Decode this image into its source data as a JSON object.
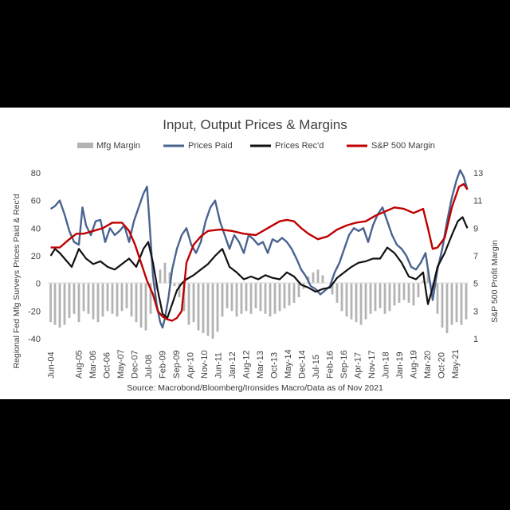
{
  "chart_data": {
    "type": "line",
    "title": "Input, Output Prices & Margins",
    "ylabel": "Regional Fed Mfg Surveys Prices Paid & Rec'd",
    "y2label": "S&P 500 Profit Margin",
    "source": "Source: Macrobond/Bloomberg/Ironsides Macro/Data as of Nov 2021",
    "ylim": [
      -40,
      80
    ],
    "y2lim": [
      1,
      13
    ],
    "yticks": [
      "80",
      "60",
      "40",
      "20",
      "0",
      "-20",
      "-40"
    ],
    "y2ticks": [
      "13",
      "11",
      "9",
      "7",
      "5",
      "3",
      "1"
    ],
    "xticks": [
      "Jun-04",
      "Aug-05",
      "Oct-06",
      "Dec-07",
      "Feb-09",
      "Apr-10",
      "Jun-11",
      "Aug-12",
      "Oct-13",
      "Dec-14",
      "Feb-16",
      "Apr-17",
      "Jun-18",
      "Aug-19",
      "Oct-20",
      "Mar-06",
      "May-07",
      "Jul-08",
      "Sep-09",
      "Nov-10",
      "Jan-12",
      "Mar-13",
      "May-14",
      "Jul-15",
      "Sep-16",
      "Nov-17",
      "Jan-19",
      "Mar-20",
      "May-21"
    ],
    "xtick_positions": [
      2004.42,
      2005.58,
      2006.75,
      2007.92,
      2009.08,
      2010.25,
      2011.42,
      2012.58,
      2013.75,
      2014.92,
      2016.08,
      2017.25,
      2018.42,
      2019.58,
      2020.75,
      2006.17,
      2007.33,
      2008.5,
      2009.67,
      2010.83,
      2012.0,
      2013.17,
      2014.33,
      2015.5,
      2016.67,
      2017.83,
      2019.0,
      2020.17,
      2021.33
    ],
    "xlim": [
      2004.3,
      2021.9
    ],
    "legend": {
      "position": "top",
      "items": [
        "Mfg Margin",
        "Prices Paid",
        "Prices Rec'd",
        "S&P 500 Margin"
      ]
    },
    "colors": {
      "mfg_margin": "#b3b3b3",
      "prices_paid": "#4a6390",
      "prices_recd": "#111111",
      "sp_margin": "#c00000"
    },
    "series": [
      {
        "name": "Prices Paid",
        "axis": "left",
        "x": [
          2004.42,
          2004.6,
          2004.8,
          2005.0,
          2005.2,
          2005.4,
          2005.6,
          2005.75,
          2005.9,
          2006.1,
          2006.3,
          2006.5,
          2006.7,
          2006.9,
          2007.1,
          2007.3,
          2007.5,
          2007.7,
          2007.9,
          2008.1,
          2008.3,
          2008.45,
          2008.55,
          2008.7,
          2008.85,
          2009.0,
          2009.1,
          2009.2,
          2009.35,
          2009.5,
          2009.7,
          2009.9,
          2010.1,
          2010.3,
          2010.5,
          2010.7,
          2010.9,
          2011.1,
          2011.3,
          2011.5,
          2011.7,
          2011.9,
          2012.1,
          2012.3,
          2012.5,
          2012.7,
          2012.9,
          2013.1,
          2013.3,
          2013.5,
          2013.7,
          2013.9,
          2014.1,
          2014.3,
          2014.5,
          2014.7,
          2014.9,
          2015.1,
          2015.3,
          2015.5,
          2015.7,
          2015.9,
          2016.1,
          2016.3,
          2016.5,
          2016.7,
          2016.9,
          2017.1,
          2017.3,
          2017.5,
          2017.7,
          2017.9,
          2018.1,
          2018.3,
          2018.5,
          2018.7,
          2018.9,
          2019.1,
          2019.3,
          2019.5,
          2019.7,
          2019.9,
          2020.1,
          2020.25,
          2020.4,
          2020.6,
          2020.8,
          2021.0,
          2021.2,
          2021.4,
          2021.55,
          2021.7,
          2021.85
        ],
        "values": [
          54,
          56,
          60,
          50,
          38,
          30,
          28,
          55,
          42,
          35,
          45,
          46,
          30,
          40,
          35,
          38,
          42,
          30,
          45,
          55,
          65,
          70,
          45,
          5,
          -15,
          -28,
          -32,
          -25,
          -10,
          10,
          25,
          35,
          40,
          28,
          22,
          30,
          45,
          55,
          60,
          45,
          35,
          25,
          35,
          30,
          22,
          35,
          32,
          28,
          30,
          22,
          32,
          30,
          33,
          30,
          25,
          18,
          10,
          5,
          -2,
          -4,
          -8,
          -5,
          -2,
          8,
          15,
          25,
          35,
          40,
          38,
          40,
          30,
          42,
          50,
          55,
          45,
          35,
          28,
          25,
          20,
          12,
          10,
          15,
          22,
          5,
          -12,
          10,
          25,
          45,
          62,
          75,
          82,
          77,
          68
        ]
      },
      {
        "name": "Prices Rec'd",
        "axis": "left",
        "x": [
          2004.42,
          2004.6,
          2004.8,
          2005.0,
          2005.3,
          2005.6,
          2005.9,
          2006.2,
          2006.5,
          2006.8,
          2007.1,
          2007.4,
          2007.7,
          2008.0,
          2008.3,
          2008.5,
          2008.7,
          2008.9,
          2009.1,
          2009.3,
          2009.5,
          2009.7,
          2009.9,
          2010.1,
          2010.4,
          2010.7,
          2011.0,
          2011.3,
          2011.6,
          2011.9,
          2012.2,
          2012.5,
          2012.8,
          2013.1,
          2013.4,
          2013.7,
          2014.0,
          2014.3,
          2014.6,
          2014.9,
          2015.2,
          2015.5,
          2015.8,
          2016.1,
          2016.4,
          2016.7,
          2017.0,
          2017.3,
          2017.6,
          2017.9,
          2018.2,
          2018.5,
          2018.8,
          2019.1,
          2019.4,
          2019.7,
          2020.0,
          2020.2,
          2020.4,
          2020.6,
          2020.9,
          2021.2,
          2021.45,
          2021.65,
          2021.85
        ],
        "values": [
          20,
          25,
          22,
          18,
          12,
          25,
          18,
          14,
          16,
          12,
          10,
          14,
          18,
          12,
          25,
          30,
          15,
          -5,
          -22,
          -25,
          -15,
          -5,
          0,
          3,
          6,
          10,
          14,
          20,
          25,
          12,
          8,
          3,
          5,
          3,
          6,
          4,
          3,
          8,
          5,
          -1,
          -3,
          -6,
          -4,
          -3,
          4,
          8,
          12,
          15,
          16,
          18,
          18,
          26,
          22,
          15,
          5,
          3,
          8,
          -15,
          -3,
          12,
          22,
          35,
          45,
          48,
          40
        ]
      },
      {
        "name": "S&P 500 Margin",
        "axis": "right",
        "x": [
          2004.42,
          2004.8,
          2005.2,
          2005.5,
          2005.8,
          2006.2,
          2006.6,
          2007.0,
          2007.4,
          2007.7,
          2007.95,
          2008.2,
          2008.45,
          2008.7,
          2008.9,
          2009.1,
          2009.3,
          2009.5,
          2009.7,
          2009.9,
          2010.1,
          2010.4,
          2010.7,
          2011.0,
          2011.5,
          2012.0,
          2012.5,
          2013.0,
          2013.5,
          2014.0,
          2014.3,
          2014.6,
          2014.9,
          2015.2,
          2015.6,
          2016.0,
          2016.4,
          2016.8,
          2017.2,
          2017.6,
          2018.0,
          2018.4,
          2018.8,
          2019.2,
          2019.6,
          2020.0,
          2020.2,
          2020.4,
          2020.6,
          2020.9,
          2021.2,
          2021.5,
          2021.7,
          2021.85
        ],
        "values": [
          7.6,
          7.6,
          8.2,
          8.6,
          8.6,
          8.8,
          9.0,
          9.4,
          9.4,
          8.8,
          7.8,
          6.5,
          5.2,
          4.2,
          3.0,
          2.6,
          2.4,
          2.3,
          2.5,
          3.0,
          6.5,
          7.8,
          8.4,
          8.8,
          8.9,
          8.8,
          8.6,
          8.5,
          9.0,
          9.5,
          9.6,
          9.5,
          9.0,
          8.6,
          8.2,
          8.4,
          8.9,
          9.2,
          9.4,
          9.5,
          9.9,
          10.2,
          10.5,
          10.4,
          10.1,
          10.4,
          9.0,
          7.5,
          7.6,
          8.3,
          10.5,
          12.0,
          12.2,
          11.8
        ]
      },
      {
        "name": "Mfg Margin",
        "type": "bar",
        "axis": "left",
        "x": [
          2004.42,
          2004.6,
          2004.8,
          2005.0,
          2005.2,
          2005.4,
          2005.6,
          2005.8,
          2006.0,
          2006.2,
          2006.4,
          2006.6,
          2006.8,
          2007.0,
          2007.2,
          2007.4,
          2007.6,
          2007.8,
          2008.0,
          2008.2,
          2008.4,
          2008.6,
          2008.8,
          2009.0,
          2009.2,
          2009.4,
          2009.6,
          2009.8,
          2010.0,
          2010.2,
          2010.4,
          2010.6,
          2010.8,
          2011.0,
          2011.2,
          2011.4,
          2011.6,
          2011.8,
          2012.0,
          2012.2,
          2012.4,
          2012.6,
          2012.8,
          2013.0,
          2013.2,
          2013.4,
          2013.6,
          2013.8,
          2014.0,
          2014.2,
          2014.4,
          2014.6,
          2014.8,
          2015.0,
          2015.2,
          2015.4,
          2015.6,
          2015.8,
          2016.0,
          2016.2,
          2016.4,
          2016.6,
          2016.8,
          2017.0,
          2017.2,
          2017.4,
          2017.6,
          2017.8,
          2018.0,
          2018.2,
          2018.4,
          2018.6,
          2018.8,
          2019.0,
          2019.2,
          2019.4,
          2019.6,
          2019.8,
          2020.0,
          2020.2,
          2020.4,
          2020.6,
          2020.8,
          2021.0,
          2021.2,
          2021.4,
          2021.6,
          2021.8
        ],
        "values": [
          -28,
          -30,
          -32,
          -30,
          -25,
          -22,
          -28,
          -20,
          -22,
          -26,
          -28,
          -24,
          -20,
          -22,
          -24,
          -20,
          -18,
          -24,
          -28,
          -32,
          -34,
          -22,
          -5,
          10,
          15,
          8,
          -2,
          -10,
          -20,
          -30,
          -28,
          -34,
          -36,
          -38,
          -40,
          -35,
          -24,
          -18,
          -20,
          -24,
          -22,
          -20,
          -22,
          -18,
          -20,
          -22,
          -24,
          -22,
          -20,
          -18,
          -16,
          -14,
          -10,
          -4,
          5,
          8,
          10,
          6,
          0,
          -8,
          -14,
          -20,
          -24,
          -26,
          -28,
          -30,
          -26,
          -22,
          -20,
          -18,
          -22,
          -20,
          -16,
          -14,
          -12,
          -14,
          -16,
          -10,
          2,
          10,
          -12,
          -22,
          -32,
          -36,
          -30,
          -28,
          -30,
          -26
        ]
      }
    ]
  }
}
